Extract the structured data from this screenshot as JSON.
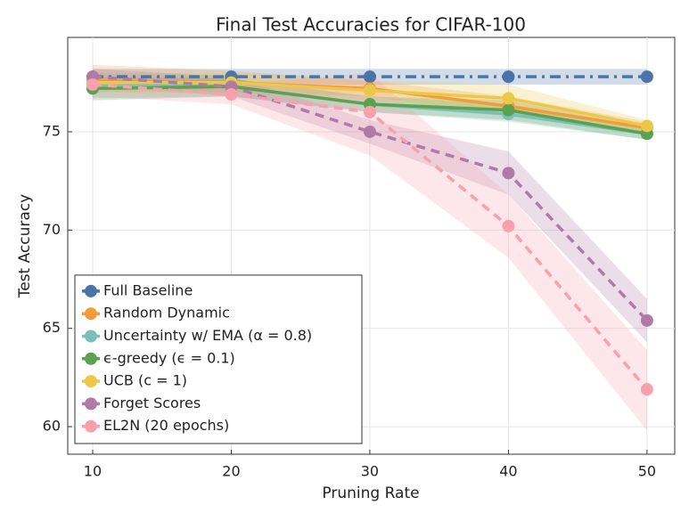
{
  "chart_data": {
    "type": "line",
    "title": "Final Test Accuracies for CIFAR-100",
    "x_label": "Pruning Rate",
    "y_label": "Test Accuracy",
    "x": [
      10,
      20,
      30,
      40,
      50
    ],
    "xlim": [
      8.2,
      52
    ],
    "ylim": [
      58.6,
      79.8
    ],
    "xticks": [
      10,
      20,
      30,
      40,
      50
    ],
    "yticks": [
      60,
      65,
      70,
      75
    ],
    "grid": true,
    "legend": "lower left",
    "series": [
      {
        "name": "Full Baseline",
        "color": "#4a74a8",
        "linestyle": "dashdot",
        "values": [
          77.8,
          77.8,
          77.8,
          77.8,
          77.8
        ],
        "lower": [
          77.4,
          77.4,
          77.4,
          77.4,
          77.4
        ],
        "upper": [
          78.2,
          78.2,
          78.2,
          78.2,
          78.2
        ]
      },
      {
        "name": "Random Dynamic",
        "color": "#f39c3a",
        "linestyle": "solid",
        "values": [
          77.6,
          77.5,
          77.2,
          76.3,
          75.2
        ],
        "lower": [
          77.0,
          77.0,
          76.8,
          75.8,
          74.9
        ],
        "upper": [
          78.4,
          78.1,
          77.6,
          76.8,
          75.5
        ]
      },
      {
        "name": "Uncertainty w/ EMA (α = 0.8)",
        "color": "#7bbfbd",
        "linestyle": "solid",
        "values": [
          77.4,
          77.3,
          76.4,
          75.9,
          74.9
        ],
        "lower": [
          76.7,
          76.8,
          76.0,
          75.5,
          74.6
        ],
        "upper": [
          78.0,
          77.7,
          76.8,
          76.4,
          75.2
        ]
      },
      {
        "name": "ϵ-greedy (ϵ = 0.1)",
        "color": "#5ba150",
        "linestyle": "solid",
        "values": [
          77.2,
          77.3,
          76.4,
          76.1,
          74.9
        ],
        "lower": [
          76.6,
          76.8,
          76.0,
          75.6,
          74.6
        ],
        "upper": [
          77.8,
          77.7,
          76.8,
          76.6,
          75.2
        ]
      },
      {
        "name": "UCB (c = 1)",
        "color": "#ecc84a",
        "linestyle": "solid",
        "values": [
          77.5,
          77.5,
          77.1,
          76.7,
          75.3
        ],
        "lower": [
          77.0,
          77.0,
          76.6,
          76.0,
          75.0
        ],
        "upper": [
          78.0,
          78.0,
          77.6,
          77.4,
          75.6
        ]
      },
      {
        "name": "Forget Scores",
        "color": "#b07aa8",
        "linestyle": "dashed",
        "values": [
          77.8,
          77.3,
          75.0,
          72.9,
          65.4
        ],
        "lower": [
          77.4,
          76.8,
          74.4,
          71.8,
          64.3
        ],
        "upper": [
          78.2,
          77.8,
          75.6,
          74.0,
          66.5
        ]
      },
      {
        "name": "EL2N (20 epochs)",
        "color": "#f8a0ab",
        "linestyle": "dashed",
        "values": [
          77.4,
          76.9,
          76.0,
          70.2,
          61.9
        ],
        "lower": [
          76.8,
          76.4,
          73.8,
          68.6,
          59.8
        ],
        "upper": [
          78.0,
          77.4,
          78.0,
          71.8,
          63.9
        ]
      }
    ]
  }
}
